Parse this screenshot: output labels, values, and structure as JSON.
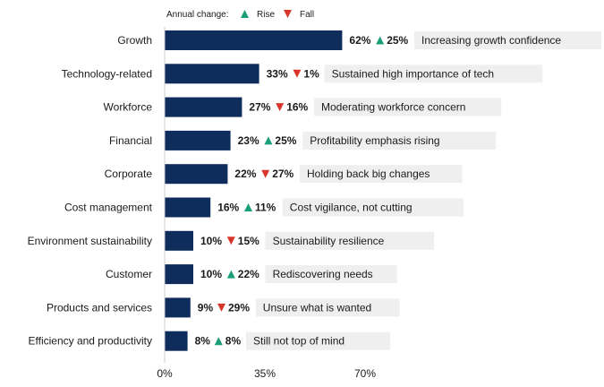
{
  "legend": {
    "title": "Annual change:",
    "rise_label": "Rise",
    "fall_label": "Fall"
  },
  "colors": {
    "bar": "#0f2d5c",
    "rise": "#1a9e7a",
    "fall": "#d9352b",
    "annotation_bg": "#efefef",
    "text": "#1a1a1a"
  },
  "chart_data": {
    "type": "bar",
    "orientation": "horizontal",
    "categories": [
      "Growth",
      "Technology-related",
      "Workforce",
      "Financial",
      "Corporate",
      "Cost management",
      "Environment sustainability",
      "Customer",
      "Products and services",
      "Efficiency and productivity"
    ],
    "values": [
      62,
      33,
      27,
      23,
      22,
      16,
      10,
      10,
      9,
      8
    ],
    "value_labels": [
      "62%",
      "33%",
      "27%",
      "23%",
      "22%",
      "16%",
      "10%",
      "10%",
      "9%",
      "8%"
    ],
    "change_direction": [
      "rise",
      "fall",
      "fall",
      "rise",
      "fall",
      "rise",
      "fall",
      "rise",
      "fall",
      "rise"
    ],
    "change_labels": [
      "25%",
      "1%",
      "16%",
      "25%",
      "27%",
      "11%",
      "15%",
      "22%",
      "29%",
      "8%"
    ],
    "annotations": [
      "Increasing growth confidence",
      "Sustained high importance of tech",
      "Moderating workforce concern",
      "Profitability emphasis rising",
      "Holding back big changes",
      "Cost vigilance, not cutting",
      "Sustainability resilience",
      "Rediscovering needs",
      "Unsure what is wanted",
      "Still not top of mind"
    ],
    "x_ticks": [
      "0%",
      "35%",
      "70%"
    ],
    "xlim": [
      0,
      70
    ]
  }
}
